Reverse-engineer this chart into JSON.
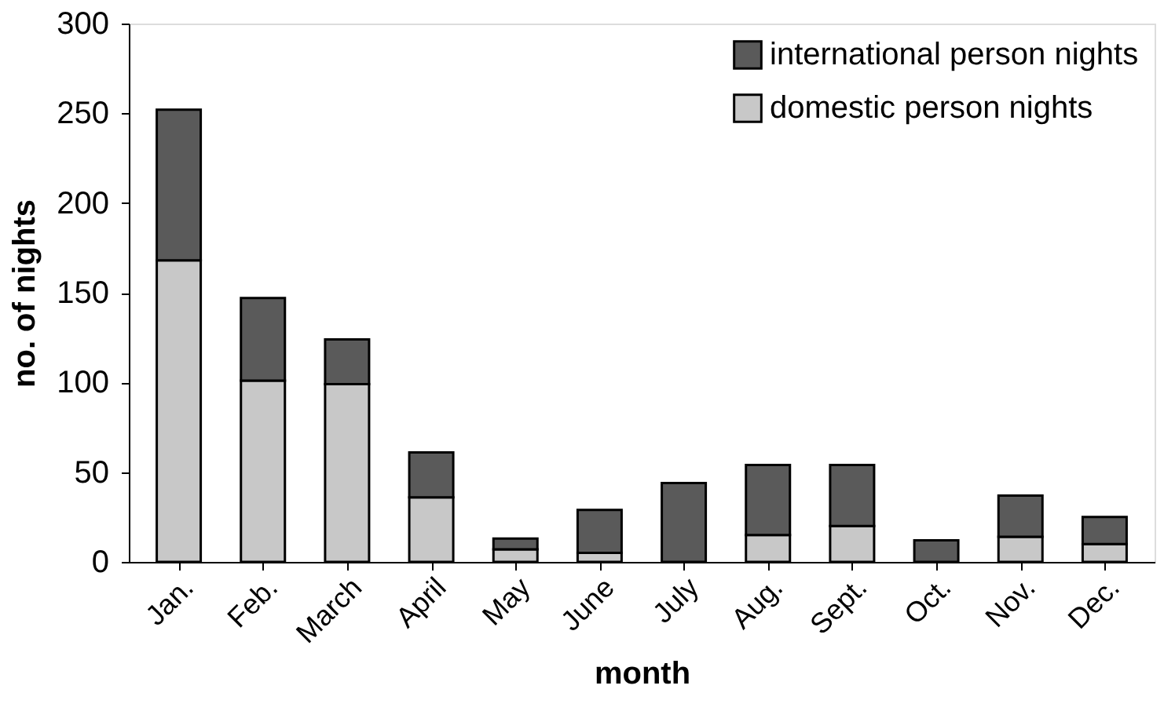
{
  "chart_data": {
    "type": "bar",
    "stacked": true,
    "xlabel": "month",
    "ylabel": "no. of nights",
    "categories": [
      "Jan.",
      "Feb.",
      "March",
      "April",
      "May",
      "June",
      "July",
      "Aug.",
      "Sept.",
      "Oct.",
      "Nov.",
      "Dec."
    ],
    "series": [
      {
        "name": "domestic person nights",
        "color": "#c8c8c8",
        "values": [
          168,
          101,
          99,
          36,
          7,
          5,
          0,
          15,
          20,
          0,
          14,
          10
        ]
      },
      {
        "name": "international person nights",
        "color": "#5a5a5a",
        "values": [
          84,
          46,
          25,
          25,
          6,
          24,
          44,
          39,
          34,
          12,
          23,
          15
        ]
      }
    ],
    "ylim": [
      0,
      300
    ],
    "yticks": [
      0,
      50,
      100,
      150,
      200,
      250,
      300
    ],
    "grid": false,
    "legend": "top right"
  }
}
